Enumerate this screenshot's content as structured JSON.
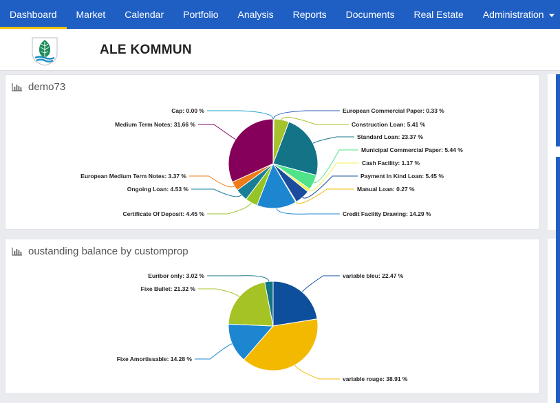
{
  "nav": {
    "items": [
      {
        "label": "Dashboard",
        "active": true
      },
      {
        "label": "Market"
      },
      {
        "label": "Calendar"
      },
      {
        "label": "Portfolio"
      },
      {
        "label": "Analysis"
      },
      {
        "label": "Reports"
      },
      {
        "label": "Documents"
      },
      {
        "label": "Real Estate"
      },
      {
        "label": "Administration",
        "dropdown": true
      }
    ]
  },
  "header": {
    "org_name": "ALE KOMMUN"
  },
  "colors": {
    "nav_bg": "#1f5fc4",
    "active_underline": "#f2c200"
  },
  "panels": [
    {
      "title": "demo73",
      "icon": "bar-chart-icon"
    },
    {
      "title": "oustanding balance by customprop",
      "icon": "bar-chart-icon"
    }
  ],
  "chart_data": [
    {
      "type": "pie",
      "title": "demo73",
      "slices": [
        {
          "label": "European Commercial Paper: 0.33 %",
          "value": 0.33,
          "color": "#2f5fbf"
        },
        {
          "label": "Construction Loan: 5.41 %",
          "value": 5.41,
          "color": "#a6c22c"
        },
        {
          "label": "Standard Loan: 23.37 %",
          "value": 23.37,
          "color": "#137387"
        },
        {
          "label": "Municipal Commercial Paper: 5.44 %",
          "value": 5.44,
          "color": "#4fe38a"
        },
        {
          "label": "Cash Facility: 1.17 %",
          "value": 1.17,
          "color": "#f5f04a"
        },
        {
          "label": "Payment In Kind Loan: 5.45 %",
          "value": 5.45,
          "color": "#1a4b9c"
        },
        {
          "label": "Manual Loan: 0.27 %",
          "value": 0.27,
          "color": "#f1b900"
        },
        {
          "label": "Credit Facility Drawing: 14.29 %",
          "value": 14.29,
          "color": "#1c86d1"
        },
        {
          "label": "Certificate Of Deposit: 4.45 %",
          "value": 4.45,
          "color": "#96c424"
        },
        {
          "label": "Ongoing Loan: 4.53 %",
          "value": 4.53,
          "color": "#1a7f96"
        },
        {
          "label": "European Medium Term Notes: 3.37 %",
          "value": 3.37,
          "color": "#ee7a19"
        },
        {
          "label": "Medium Term Notes: 31.66 %",
          "value": 31.66,
          "color": "#850159"
        },
        {
          "label": "Cap: 0.00 %",
          "value": 0.0,
          "color": "#19a1c9"
        }
      ]
    },
    {
      "type": "pie",
      "title": "oustanding balance by customprop",
      "slices": [
        {
          "label": "variable bleu: 22.47 %",
          "value": 22.47,
          "color": "#0d4f9b"
        },
        {
          "label": "variable rouge: 38.91 %",
          "value": 38.91,
          "color": "#f2b900"
        },
        {
          "label": "Fixe Amortissable: 14.28 %",
          "value": 14.28,
          "color": "#1c86d1"
        },
        {
          "label": "Fixe Bullet: 21.32 %",
          "value": 21.32,
          "color": "#a5c324"
        },
        {
          "label": "Euribor only: 3.02 %",
          "value": 3.02,
          "color": "#137387"
        }
      ]
    }
  ]
}
